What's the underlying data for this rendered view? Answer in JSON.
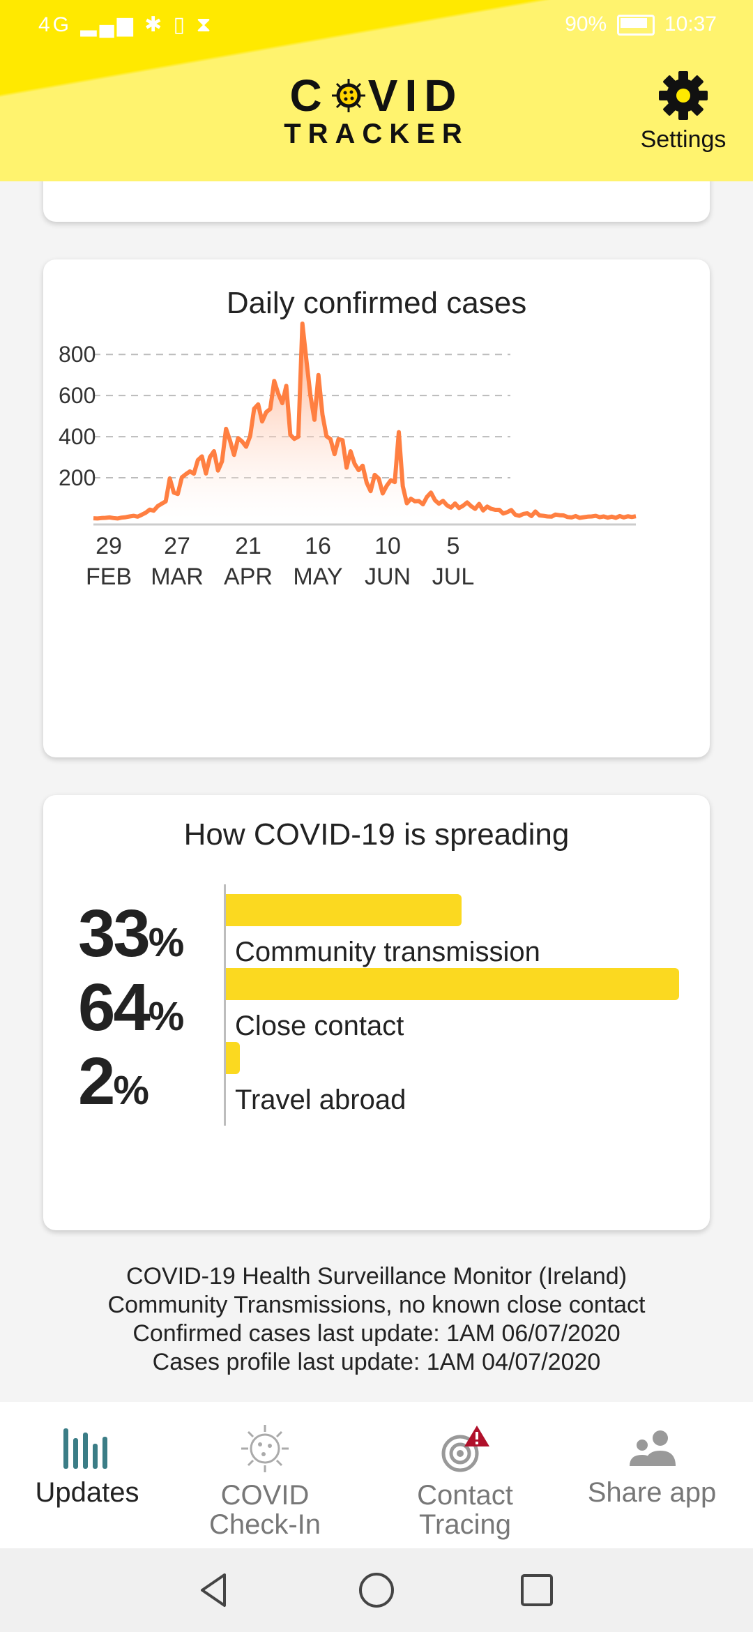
{
  "status_bar": {
    "signal_text": "4G",
    "battery": "90%",
    "time": "10:37"
  },
  "header": {
    "logo_line1": "COVID",
    "logo_line2": "TRACKER",
    "settings_label": "Settings",
    "colors": {
      "background": "#ffee00",
      "light": "#fff36e"
    }
  },
  "chart_card": {
    "title": "Daily confirmed cases"
  },
  "chart_data": {
    "type": "area",
    "title": "Daily confirmed cases",
    "xlabel": "",
    "ylabel": "",
    "ylim": [
      0,
      950
    ],
    "yticks": [
      200,
      400,
      600,
      800
    ],
    "xticks": [
      {
        "day": "29",
        "month": "FEB"
      },
      {
        "day": "27",
        "month": "MAR"
      },
      {
        "day": "21",
        "month": "APR"
      },
      {
        "day": "16",
        "month": "MAY"
      },
      {
        "day": "10",
        "month": "JUN"
      },
      {
        "day": "5",
        "month": "JUL"
      }
    ],
    "grid": "horizontal dashed",
    "x_start": "2020-02-29",
    "color": "#ff7f41",
    "values": [
      3,
      2,
      4,
      5,
      7,
      4,
      2,
      6,
      8,
      12,
      15,
      11,
      20,
      30,
      45,
      40,
      62,
      74,
      85,
      197,
      128,
      121,
      202,
      217,
      231,
      220,
      286,
      304,
      221,
      301,
      329,
      235,
      280,
      438,
      381,
      311,
      393,
      377,
      351,
      403,
      536,
      557,
      474,
      519,
      535,
      671,
      609,
      563,
      647,
      409,
      389,
      400,
      950,
      774,
      601,
      482,
      700,
      507,
      402,
      388,
      315,
      388,
      383,
      249,
      329,
      268,
      237,
      259,
      176,
      135,
      214,
      196,
      124,
      161,
      188,
      179,
      422,
      159,
      76,
      98,
      86,
      87,
      71,
      107,
      128,
      91,
      74,
      88,
      66,
      55,
      75,
      53,
      64,
      80,
      62,
      49,
      73,
      41,
      60,
      49,
      44,
      44,
      26,
      33,
      43,
      20,
      15,
      24,
      27,
      14,
      36,
      17,
      15,
      12,
      11,
      21,
      18,
      17,
      9,
      7,
      14,
      5,
      8,
      11,
      12,
      15,
      8,
      12,
      6,
      11,
      5,
      14,
      7,
      13,
      9,
      13
    ]
  },
  "spread_card": {
    "title": "How COVID-19 is spreading",
    "items": [
      {
        "percent": "33",
        "sign": "%",
        "label": "Community transmission",
        "fraction": 0.52
      },
      {
        "percent": "64",
        "sign": "%",
        "label": "Close contact",
        "fraction": 1.0
      },
      {
        "percent": "2",
        "sign": "%",
        "label": "Travel abroad",
        "fraction": 0.03
      }
    ],
    "bar_color": "#fbd920"
  },
  "info": {
    "line1": "COVID-19 Health Surveillance Monitor (Ireland)",
    "line2": "Community Transmissions, no known close contact",
    "line3": "Confirmed cases last update:  1AM 06/07/2020",
    "line4": "Cases profile last update:  1AM 04/07/2020"
  },
  "nav": {
    "items": [
      {
        "label": "Updates",
        "icon": "bar-chart-icon"
      },
      {
        "label": "COVID Check-In",
        "label1": "COVID",
        "label2": "Check-In",
        "icon": "virus-icon"
      },
      {
        "label": "Contact Tracing",
        "label1": "Contact",
        "label2": "Tracing",
        "icon": "contact-tracing-icon"
      },
      {
        "label": "Share app",
        "icon": "people-icon"
      }
    ],
    "active_color": "#3b7d86"
  }
}
